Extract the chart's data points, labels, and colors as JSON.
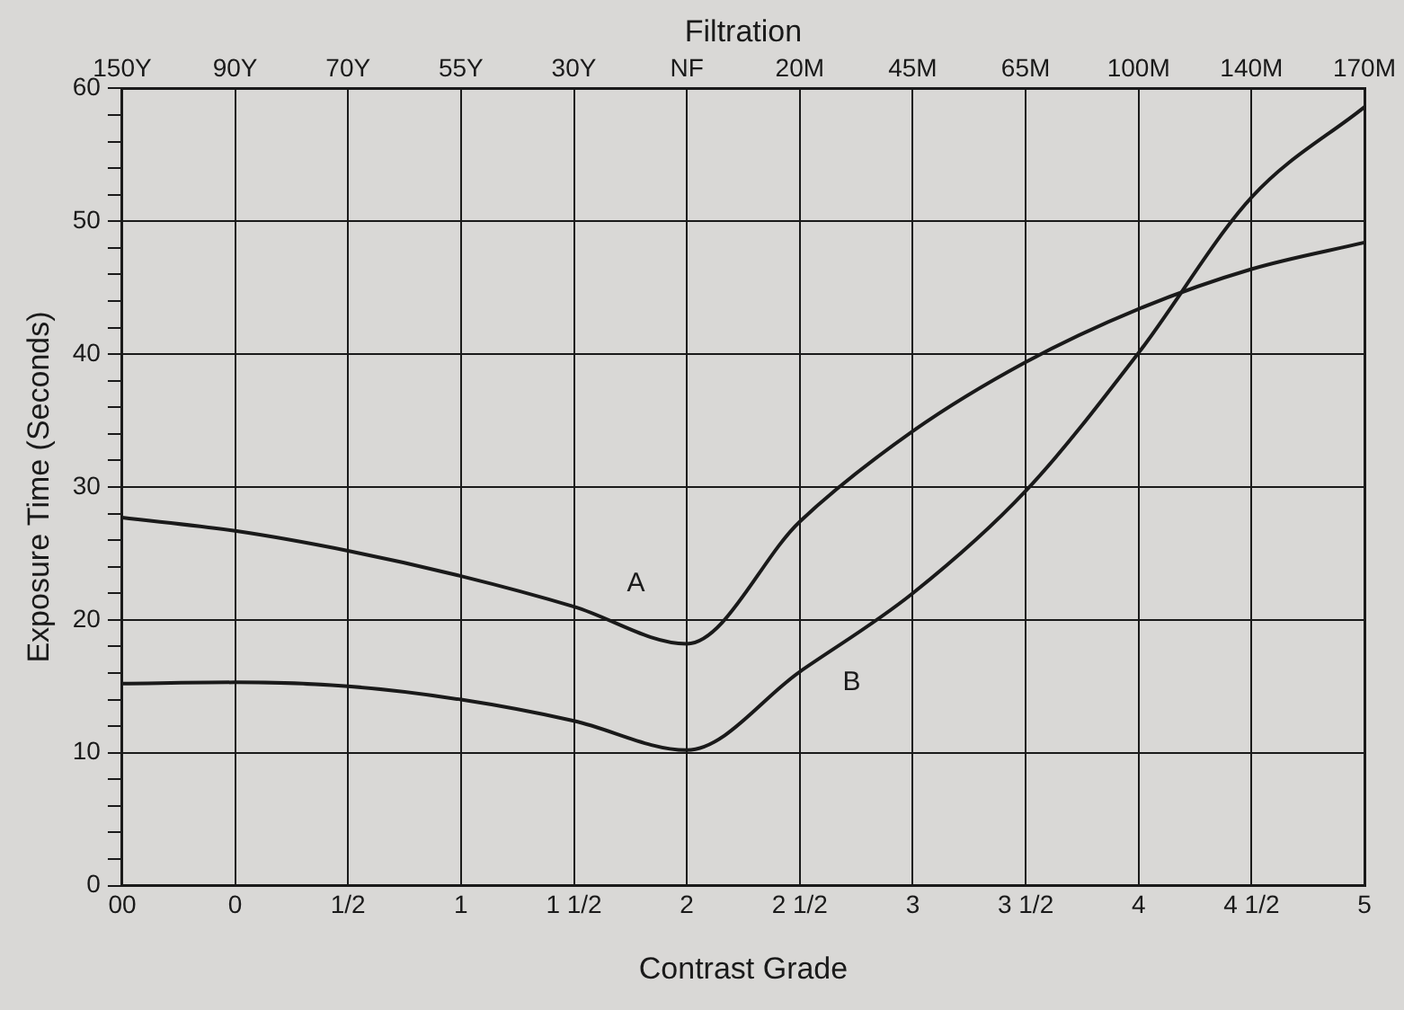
{
  "chart_data": {
    "type": "line",
    "xlabel": "Contrast Grade",
    "x2label": "Filtration",
    "ylabel": "Exposure Time (Seconds)",
    "categories": [
      "00",
      "0",
      "1/2",
      "1",
      "1 1/2",
      "2",
      "2 1/2",
      "3",
      "3 1/2",
      "4",
      "4 1/2",
      "5"
    ],
    "annotations": [
      "150Y",
      "90Y",
      "70Y",
      "55Y",
      "30Y",
      "NF",
      "20M",
      "45M",
      "65M",
      "100M",
      "140M",
      "170M"
    ],
    "ylim": [
      0,
      60
    ],
    "yticks": [
      0,
      {
        "value": 2,
        "label": null
      },
      {
        "value": 4,
        "label": null
      },
      {
        "value": 6,
        "label": null
      },
      {
        "value": 8,
        "label": null
      },
      10,
      {
        "value": 12,
        "label": null
      },
      {
        "value": 14,
        "label": null
      },
      {
        "value": 16,
        "label": null
      },
      {
        "value": 18,
        "label": null
      },
      20,
      {
        "value": 22,
        "label": null
      },
      {
        "value": 24,
        "label": null
      },
      {
        "value": 26,
        "label": null
      },
      {
        "value": 28,
        "label": null
      },
      30,
      {
        "value": 32,
        "label": null
      },
      {
        "value": 34,
        "label": null
      },
      {
        "value": 36,
        "label": null
      },
      {
        "value": 38,
        "label": null
      },
      40,
      {
        "value": 42,
        "label": null
      },
      {
        "value": 44,
        "label": null
      },
      {
        "value": 46,
        "label": null
      },
      {
        "value": 48,
        "label": null
      },
      50,
      {
        "value": 52,
        "label": null
      },
      {
        "value": 54,
        "label": null
      },
      {
        "value": 56,
        "label": null
      },
      {
        "value": 58,
        "label": null
      },
      60
    ],
    "grid": true,
    "legend": false,
    "marker": "none",
    "line_style": "solid",
    "series": [
      {
        "name": "A",
        "color": "#1a1a1a",
        "values": [
          27.7,
          26.7,
          25.2,
          23.3,
          21,
          18.2,
          27.4,
          34.2,
          39.4,
          43.4,
          46.4,
          48.4
        ]
      },
      {
        "name": "B",
        "color": "#1a1a1a",
        "values": [
          15.2,
          15.3,
          15,
          14,
          12.4,
          10.2,
          16.1,
          22,
          29.7,
          40.1,
          51.8,
          58.6
        ]
      }
    ]
  }
}
